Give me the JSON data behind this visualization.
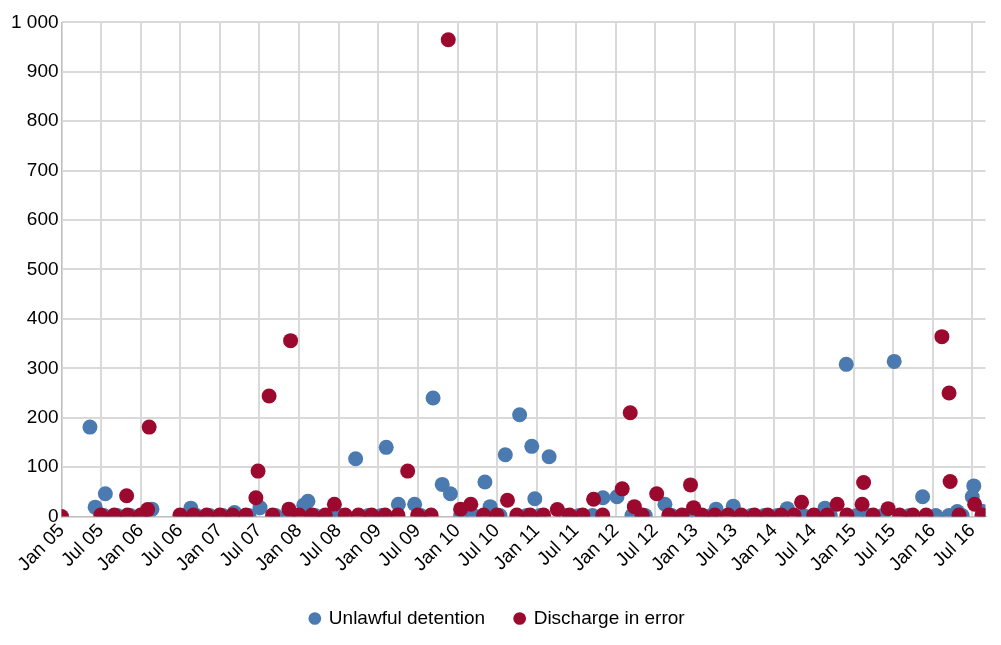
{
  "chart_data": {
    "type": "scatter",
    "xlim": [
      "2005-01-01",
      "2016-08-31"
    ],
    "xticks": [
      {
        "value": "2005-01-01",
        "label": "Jan 05"
      },
      {
        "value": "2005-07-01",
        "label": "Jul 05"
      },
      {
        "value": "2006-01-01",
        "label": "Jan 06"
      },
      {
        "value": "2006-07-01",
        "label": "Jul 06"
      },
      {
        "value": "2007-01-01",
        "label": "Jan 07"
      },
      {
        "value": "2007-07-01",
        "label": "Jul 07"
      },
      {
        "value": "2008-01-01",
        "label": "Jan 08"
      },
      {
        "value": "2008-07-01",
        "label": "Jul 08"
      },
      {
        "value": "2009-01-01",
        "label": "Jan 09"
      },
      {
        "value": "2009-07-01",
        "label": "Jul 09"
      },
      {
        "value": "2010-01-01",
        "label": "Jan 10"
      },
      {
        "value": "2010-07-01",
        "label": "Jul 10"
      },
      {
        "value": "2011-01-01",
        "label": "Jan 11"
      },
      {
        "value": "2011-07-01",
        "label": "Jul 11"
      },
      {
        "value": "2012-01-01",
        "label": "Jan 12"
      },
      {
        "value": "2012-07-01",
        "label": "Jul 12"
      },
      {
        "value": "2013-01-01",
        "label": "Jan 13"
      },
      {
        "value": "2013-07-01",
        "label": "Jul 13"
      },
      {
        "value": "2014-01-01",
        "label": "Jan 14"
      },
      {
        "value": "2014-07-01",
        "label": "Jul 14"
      },
      {
        "value": "2015-01-01",
        "label": "Jan 15"
      },
      {
        "value": "2015-07-01",
        "label": "Jul 15"
      },
      {
        "value": "2016-01-01",
        "label": "Jan 16"
      },
      {
        "value": "2016-07-01",
        "label": "Jul 16"
      }
    ],
    "ylim": [
      0,
      1000
    ],
    "yticks": [
      0,
      100,
      200,
      300,
      400,
      500,
      600,
      700,
      800,
      900,
      {
        "value": 1000,
        "label": "1 000"
      }
    ],
    "grid": true,
    "legend": "bottom",
    "marker": "circle",
    "series": [
      {
        "name": "Unlawful detention",
        "color": "#4a7ab0",
        "x": [
          "2005-05-12",
          "2005-06-05",
          "2005-07-22",
          "2006-02-22",
          "2006-08-20",
          "2007-03-09",
          "2007-07-05",
          "2008-01-23",
          "2008-02-11",
          "2008-09-18",
          "2009-02-06",
          "2009-04-03",
          "2009-06-17",
          "2009-09-10",
          "2009-10-22",
          "2009-11-29",
          "2010-05-07",
          "2010-05-31",
          "2010-08-09",
          "2010-10-14",
          "2010-12-09",
          "2010-12-23",
          "2011-02-27",
          "2011-11-02",
          "2012-01-06",
          "2012-08-14",
          "2013-04-07",
          "2013-06-25",
          "2014-03-01",
          "2014-08-22",
          "2014-11-28",
          "2015-07-07",
          "2015-11-15",
          "2016-04-23",
          "2016-07-01",
          "2016-07-08",
          "2016-08-20",
          "2005-07-15",
          "2005-09-15",
          "2005-11-15",
          "2006-01-15",
          "2006-07-15",
          "2006-09-15",
          "2006-11-15",
          "2007-01-15",
          "2007-05-15",
          "2007-09-15",
          "2007-11-15",
          "2008-03-15",
          "2008-05-15",
          "2008-07-15",
          "2008-11-15",
          "2009-01-15",
          "2009-07-15",
          "2010-01-15",
          "2010-03-15",
          "2010-07-15",
          "2010-11-15",
          "2011-01-15",
          "2011-05-15",
          "2011-07-15",
          "2011-09-15",
          "2012-03-15",
          "2012-05-15",
          "2012-09-15",
          "2012-11-15",
          "2013-01-15",
          "2013-03-15",
          "2013-07-15",
          "2013-09-15",
          "2013-11-15",
          "2014-01-15",
          "2014-05-15",
          "2014-07-15",
          "2014-09-15",
          "2015-01-15",
          "2015-03-15",
          "2015-05-15",
          "2015-09-15",
          "2016-01-15",
          "2016-03-15",
          "2016-05-15"
        ],
        "values": [
          181,
          19,
          46,
          15,
          17,
          8,
          18,
          23,
          31,
          117,
          140,
          25,
          25,
          240,
          65,
          46,
          70,
          20,
          125,
          206,
          142,
          36,
          121,
          38,
          40,
          25,
          15,
          21,
          16,
          17,
          308,
          314,
          40,
          10,
          40,
          62,
          10,
          2,
          2,
          2,
          2,
          2,
          2,
          2,
          2,
          2,
          2,
          2,
          2,
          2,
          2,
          2,
          2,
          2,
          2,
          2,
          2,
          2,
          2,
          2,
          2,
          2,
          2,
          2,
          2,
          2,
          2,
          2,
          2,
          2,
          2,
          2,
          2,
          2,
          2,
          2,
          2,
          2,
          2,
          2,
          2,
          2
        ]
      },
      {
        "name": "Discharge in error",
        "color": "#9b0a2e",
        "x": [
          "2005-01-01",
          "2005-10-28",
          "2006-02-09",
          "2006-02-02",
          "2007-06-26",
          "2007-06-16",
          "2007-08-16",
          "2007-11-23",
          "2007-11-15",
          "2008-06-12",
          "2009-05-16",
          "2009-11-19",
          "2010-01-15",
          "2010-03-03",
          "2010-08-19",
          "2011-04-06",
          "2011-09-20",
          "2012-01-30",
          "2012-03-07",
          "2012-03-26",
          "2012-07-07",
          "2012-12-10",
          "2012-12-24",
          "2014-05-06",
          "2014-10-17",
          "2015-02-16",
          "2015-02-09",
          "2015-06-09",
          "2016-02-12",
          "2016-03-16",
          "2016-03-21",
          "2016-07-12",
          "2005-07-01",
          "2005-09-01",
          "2005-11-01",
          "2006-01-01",
          "2006-07-01",
          "2006-09-01",
          "2006-11-01",
          "2007-01-01",
          "2007-03-01",
          "2007-05-01",
          "2007-09-01",
          "2008-01-01",
          "2008-03-01",
          "2008-05-01",
          "2008-08-01",
          "2008-10-01",
          "2008-12-01",
          "2009-02-01",
          "2009-04-01",
          "2009-07-01",
          "2009-09-01",
          "2010-05-01",
          "2010-07-01",
          "2010-10-01",
          "2010-12-01",
          "2011-02-01",
          "2011-06-01",
          "2011-08-01",
          "2011-11-01",
          "2012-05-01",
          "2012-09-01",
          "2012-11-01",
          "2013-02-01",
          "2013-04-01",
          "2013-06-01",
          "2013-08-01",
          "2013-10-01",
          "2013-12-01",
          "2014-02-01",
          "2014-04-01",
          "2014-07-01",
          "2014-09-01",
          "2014-12-01",
          "2015-04-01",
          "2015-08-01",
          "2015-10-01",
          "2015-12-01",
          "2016-05-01",
          "2016-08-15"
        ],
        "values": [
          0,
          42,
          181,
          14,
          92,
          38,
          244,
          356,
          15,
          25,
          92,
          965,
          15,
          25,
          33,
          14,
          35,
          56,
          210,
          20,
          46,
          64,
          18,
          29,
          25,
          69,
          25,
          16,
          364,
          250,
          71,
          25,
          3,
          3,
          3,
          3,
          3,
          3,
          3,
          3,
          3,
          3,
          3,
          3,
          3,
          3,
          3,
          3,
          3,
          3,
          3,
          3,
          3,
          3,
          3,
          3,
          3,
          3,
          3,
          3,
          3,
          3,
          3,
          3,
          3,
          3,
          3,
          3,
          3,
          3,
          3,
          3,
          3,
          3,
          3,
          3,
          3,
          3,
          3,
          3,
          3
        ]
      }
    ]
  }
}
